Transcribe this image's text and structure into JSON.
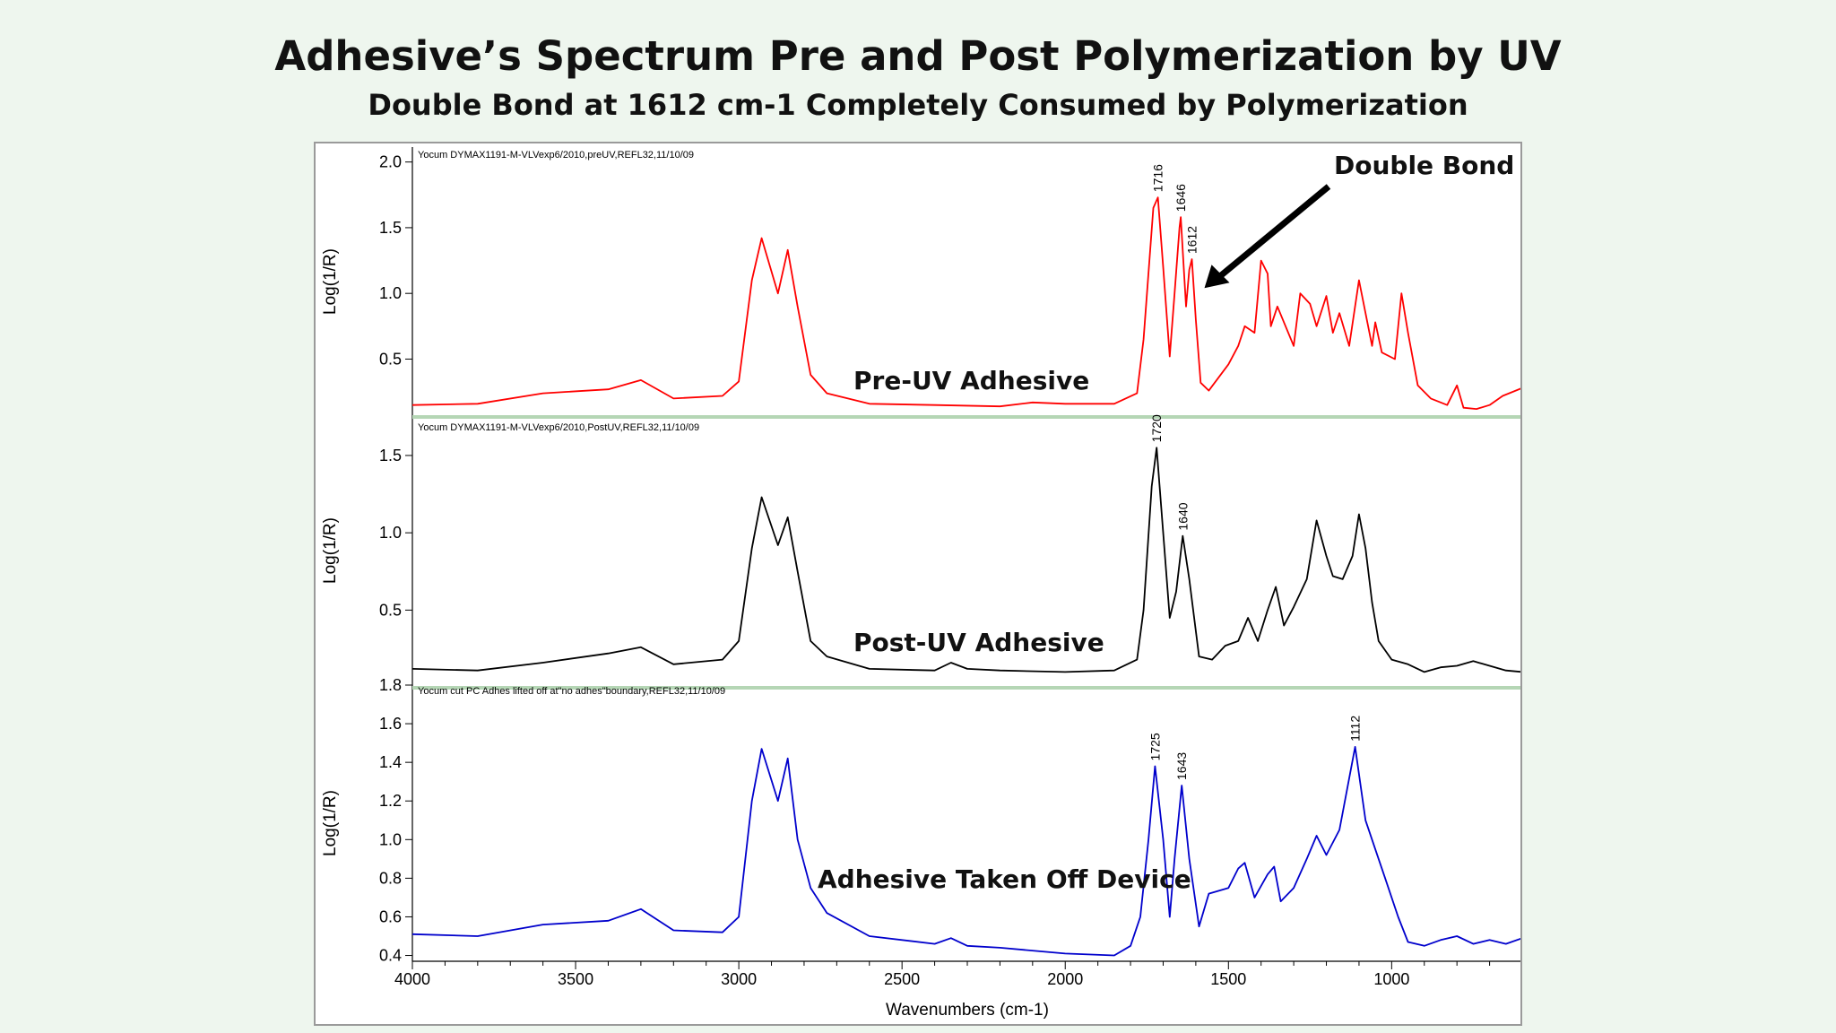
{
  "title": "Adhesive’s Spectrum Pre and Post Polymerization by UV",
  "subtitle": "Double Bond at 1612 cm-1 Completely Consumed by Polymerization",
  "colors": {
    "pre": "#ff0000",
    "post": "#000000",
    "device": "#0000cc",
    "separator": "#b5d6b5",
    "background": "#eef6ee"
  },
  "chart_data": {
    "type": "line",
    "xlabel": "Wavenumbers (cm-1)",
    "xlim": [
      4000,
      600
    ],
    "x_ticks": [
      4000,
      3500,
      3000,
      2500,
      2000,
      1500,
      1000
    ],
    "x_reversed": true,
    "grid": false,
    "panels": [
      {
        "id": "pre",
        "header": "Yocum DYMAX1191-M-VLVexp6/2010,preUV,REFL32,11/10/09",
        "ylabel": "Log(1/R)",
        "ylim": [
          0.08,
          2.1
        ],
        "y_ticks": [
          0.5,
          1.0,
          1.5,
          2.0
        ],
        "y_tick_labels": [
          "0.5",
          "1.0",
          "1.5",
          "2.0"
        ],
        "annotation": "Pre-UV Adhesive",
        "peak_labels": [
          {
            "x": 1716,
            "y": 1.73,
            "label": "1716"
          },
          {
            "x": 1646,
            "y": 1.58,
            "label": "1646"
          },
          {
            "x": 1612,
            "y": 1.26,
            "label": "1612"
          }
        ],
        "callout": "Double Bond",
        "points": [
          [
            4000,
            0.15
          ],
          [
            3800,
            0.16
          ],
          [
            3600,
            0.24
          ],
          [
            3400,
            0.27
          ],
          [
            3300,
            0.34
          ],
          [
            3200,
            0.2
          ],
          [
            3050,
            0.22
          ],
          [
            3000,
            0.33
          ],
          [
            2960,
            1.1
          ],
          [
            2930,
            1.42
          ],
          [
            2880,
            1.0
          ],
          [
            2850,
            1.33
          ],
          [
            2820,
            0.9
          ],
          [
            2780,
            0.38
          ],
          [
            2730,
            0.24
          ],
          [
            2600,
            0.16
          ],
          [
            2400,
            0.15
          ],
          [
            2200,
            0.14
          ],
          [
            2100,
            0.17
          ],
          [
            2000,
            0.16
          ],
          [
            1850,
            0.16
          ],
          [
            1780,
            0.24
          ],
          [
            1760,
            0.65
          ],
          [
            1730,
            1.65
          ],
          [
            1716,
            1.73
          ],
          [
            1700,
            1.2
          ],
          [
            1680,
            0.52
          ],
          [
            1665,
            1.0
          ],
          [
            1650,
            1.5
          ],
          [
            1646,
            1.58
          ],
          [
            1630,
            0.9
          ],
          [
            1620,
            1.18
          ],
          [
            1612,
            1.26
          ],
          [
            1600,
            0.8
          ],
          [
            1585,
            0.32
          ],
          [
            1560,
            0.26
          ],
          [
            1500,
            0.46
          ],
          [
            1470,
            0.6
          ],
          [
            1450,
            0.75
          ],
          [
            1420,
            0.7
          ],
          [
            1400,
            1.25
          ],
          [
            1380,
            1.15
          ],
          [
            1370,
            0.75
          ],
          [
            1350,
            0.9
          ],
          [
            1300,
            0.6
          ],
          [
            1280,
            1.0
          ],
          [
            1250,
            0.92
          ],
          [
            1230,
            0.75
          ],
          [
            1200,
            0.98
          ],
          [
            1180,
            0.7
          ],
          [
            1160,
            0.85
          ],
          [
            1130,
            0.6
          ],
          [
            1100,
            1.1
          ],
          [
            1080,
            0.85
          ],
          [
            1060,
            0.6
          ],
          [
            1050,
            0.78
          ],
          [
            1030,
            0.55
          ],
          [
            990,
            0.5
          ],
          [
            970,
            1.0
          ],
          [
            950,
            0.7
          ],
          [
            920,
            0.3
          ],
          [
            880,
            0.2
          ],
          [
            830,
            0.15
          ],
          [
            800,
            0.3
          ],
          [
            780,
            0.13
          ],
          [
            740,
            0.12
          ],
          [
            700,
            0.15
          ],
          [
            660,
            0.22
          ],
          [
            600,
            0.28
          ]
        ]
      },
      {
        "id": "post",
        "header": "Yocum DYMAX1191-M-VLVexp6/2010,PostUV,REFL32,11/10/09",
        "ylabel": "Log(1/R)",
        "ylim": [
          0.05,
          1.72
        ],
        "y_ticks": [
          0.5,
          1.0,
          1.5
        ],
        "y_tick_labels": [
          "0.5",
          "1.0",
          "1.5"
        ],
        "annotation": "Post-UV Adhesive",
        "peak_labels": [
          {
            "x": 1720,
            "y": 1.55,
            "label": "1720"
          },
          {
            "x": 1640,
            "y": 0.98,
            "label": "1640"
          }
        ],
        "points": [
          [
            4000,
            0.12
          ],
          [
            3800,
            0.11
          ],
          [
            3600,
            0.16
          ],
          [
            3400,
            0.22
          ],
          [
            3300,
            0.26
          ],
          [
            3200,
            0.15
          ],
          [
            3050,
            0.18
          ],
          [
            3000,
            0.3
          ],
          [
            2960,
            0.9
          ],
          [
            2930,
            1.23
          ],
          [
            2880,
            0.92
          ],
          [
            2850,
            1.1
          ],
          [
            2820,
            0.75
          ],
          [
            2780,
            0.3
          ],
          [
            2730,
            0.2
          ],
          [
            2600,
            0.12
          ],
          [
            2400,
            0.11
          ],
          [
            2350,
            0.16
          ],
          [
            2300,
            0.12
          ],
          [
            2200,
            0.11
          ],
          [
            2000,
            0.1
          ],
          [
            1850,
            0.11
          ],
          [
            1780,
            0.18
          ],
          [
            1760,
            0.5
          ],
          [
            1735,
            1.3
          ],
          [
            1720,
            1.55
          ],
          [
            1700,
            1.0
          ],
          [
            1680,
            0.45
          ],
          [
            1660,
            0.62
          ],
          [
            1640,
            0.98
          ],
          [
            1620,
            0.7
          ],
          [
            1590,
            0.2
          ],
          [
            1550,
            0.18
          ],
          [
            1510,
            0.27
          ],
          [
            1470,
            0.3
          ],
          [
            1440,
            0.45
          ],
          [
            1410,
            0.3
          ],
          [
            1380,
            0.5
          ],
          [
            1355,
            0.65
          ],
          [
            1330,
            0.4
          ],
          [
            1300,
            0.52
          ],
          [
            1260,
            0.7
          ],
          [
            1230,
            1.08
          ],
          [
            1200,
            0.85
          ],
          [
            1180,
            0.72
          ],
          [
            1150,
            0.7
          ],
          [
            1120,
            0.85
          ],
          [
            1100,
            1.12
          ],
          [
            1080,
            0.9
          ],
          [
            1060,
            0.55
          ],
          [
            1040,
            0.3
          ],
          [
            1000,
            0.18
          ],
          [
            950,
            0.15
          ],
          [
            900,
            0.1
          ],
          [
            850,
            0.13
          ],
          [
            800,
            0.14
          ],
          [
            750,
            0.17
          ],
          [
            700,
            0.14
          ],
          [
            650,
            0.11
          ],
          [
            600,
            0.1
          ]
        ]
      },
      {
        "id": "device",
        "header": "Yocum cut PC Adhes lifted off at\"no adhes\"boundary,REFL32,11/10/09",
        "ylabel": "Log(1/R)",
        "ylim": [
          0.37,
          1.8
        ],
        "y_ticks": [
          0.4,
          0.6,
          0.8,
          1.0,
          1.2,
          1.4,
          1.6,
          1.8
        ],
        "y_tick_labels": [
          "0.4",
          "0.6",
          "0.8",
          "1.0",
          "1.2",
          "1.4",
          "1.6",
          "1.8"
        ],
        "annotation": "Adhesive Taken Off Device",
        "peak_labels": [
          {
            "x": 1725,
            "y": 1.38,
            "label": "1725"
          },
          {
            "x": 1643,
            "y": 1.28,
            "label": "1643"
          },
          {
            "x": 1112,
            "y": 1.48,
            "label": "1112"
          }
        ],
        "points": [
          [
            4000,
            0.51
          ],
          [
            3800,
            0.5
          ],
          [
            3600,
            0.56
          ],
          [
            3400,
            0.58
          ],
          [
            3300,
            0.64
          ],
          [
            3200,
            0.53
          ],
          [
            3050,
            0.52
          ],
          [
            3000,
            0.6
          ],
          [
            2960,
            1.2
          ],
          [
            2930,
            1.47
          ],
          [
            2880,
            1.2
          ],
          [
            2850,
            1.42
          ],
          [
            2820,
            1.0
          ],
          [
            2780,
            0.75
          ],
          [
            2730,
            0.62
          ],
          [
            2600,
            0.5
          ],
          [
            2400,
            0.46
          ],
          [
            2350,
            0.49
          ],
          [
            2300,
            0.45
          ],
          [
            2200,
            0.44
          ],
          [
            2000,
            0.41
          ],
          [
            1850,
            0.4
          ],
          [
            1800,
            0.45
          ],
          [
            1770,
            0.6
          ],
          [
            1745,
            1.0
          ],
          [
            1725,
            1.38
          ],
          [
            1700,
            1.0
          ],
          [
            1680,
            0.6
          ],
          [
            1665,
            0.9
          ],
          [
            1643,
            1.28
          ],
          [
            1620,
            0.9
          ],
          [
            1590,
            0.55
          ],
          [
            1560,
            0.72
          ],
          [
            1500,
            0.75
          ],
          [
            1470,
            0.85
          ],
          [
            1450,
            0.88
          ],
          [
            1420,
            0.7
          ],
          [
            1380,
            0.82
          ],
          [
            1360,
            0.86
          ],
          [
            1340,
            0.68
          ],
          [
            1300,
            0.75
          ],
          [
            1260,
            0.9
          ],
          [
            1230,
            1.02
          ],
          [
            1200,
            0.92
          ],
          [
            1160,
            1.05
          ],
          [
            1112,
            1.48
          ],
          [
            1080,
            1.1
          ],
          [
            1050,
            0.95
          ],
          [
            1020,
            0.8
          ],
          [
            980,
            0.6
          ],
          [
            950,
            0.47
          ],
          [
            900,
            0.45
          ],
          [
            850,
            0.48
          ],
          [
            800,
            0.5
          ],
          [
            750,
            0.46
          ],
          [
            700,
            0.48
          ],
          [
            650,
            0.46
          ],
          [
            600,
            0.49
          ]
        ]
      }
    ]
  }
}
